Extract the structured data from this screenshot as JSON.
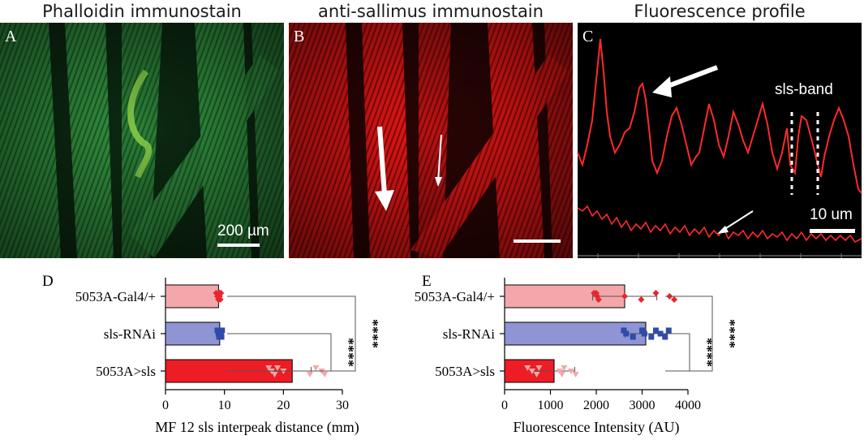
{
  "panels": {
    "a": {
      "letter": "A",
      "title": "Phalloidin immunostain",
      "scale_label": "200 µm"
    },
    "b": {
      "letter": "B",
      "title": "anti-sallimus immunostain"
    },
    "c": {
      "letter": "C",
      "title": "Fluorescence profile",
      "band_label": "sls-band",
      "scale_label": "10 um"
    }
  },
  "colors": {
    "green": "#3aa64a",
    "red": "#ff1a1a",
    "pink": "#f4a7aa",
    "lavender": "#8f94d4",
    "blue": "#2f4aa8",
    "bar_red": "#ee1c25"
  },
  "chart_data": [
    {
      "type": "bar",
      "orientation": "horizontal",
      "panel_label": "D",
      "categories": [
        "5053A-Gal4/+",
        "sls-RNAi",
        "5053A>sls"
      ],
      "values": [
        9,
        9.2,
        21.5
      ],
      "errors": [
        0.3,
        0.3,
        3.2
      ],
      "xlabel": "MF 12 sls interpeak distance (mm)",
      "xlim": [
        0,
        30
      ],
      "xticks": [
        "0",
        "10",
        "20",
        "30"
      ],
      "xtick_values": [
        0,
        10,
        20,
        30
      ],
      "points": [
        [
          8.6,
          8.8,
          9.0,
          9.1,
          9.2,
          9.3,
          9.4,
          8.9,
          9.0,
          9.2
        ],
        [
          8.8,
          9.0,
          9.1,
          9.3,
          9.4,
          9.5,
          9.2,
          9.0,
          9.3,
          9.6
        ],
        [
          17.5,
          18.0,
          18.5,
          19.0,
          20.0,
          24.5,
          25.5,
          26.5,
          27.0
        ]
      ],
      "bar_colors": [
        "#f4a7aa",
        "#8f94d4",
        "#ee1c25"
      ],
      "point_colors": [
        "#e8262d",
        "#2f4aa8",
        "#f4a7aa"
      ],
      "significance": [
        "****",
        "****"
      ]
    },
    {
      "type": "bar",
      "orientation": "horizontal",
      "panel_label": "E",
      "categories": [
        "5053A-Gal4/+",
        "sls-RNAi",
        "5053A>sls"
      ],
      "values": [
        2620,
        3080,
        1080
      ],
      "errors": [
        700,
        450,
        450
      ],
      "xlabel": "Fluorescence Intensity (AU)",
      "xlim": [
        0,
        4000
      ],
      "xticks": [
        "0",
        "1000",
        "2000",
        "3000",
        "4000"
      ],
      "xtick_values": [
        0,
        1000,
        2000,
        3000,
        4000
      ],
      "points": [
        [
          1950,
          2020,
          2050,
          2000,
          2620,
          2980,
          3300,
          3600,
          3700
        ],
        [
          2600,
          2650,
          2800,
          3000,
          3050,
          3200,
          3300,
          3400,
          3500,
          3580
        ],
        [
          500,
          600,
          700,
          750,
          1200,
          1250,
          1300,
          1450,
          1550
        ]
      ],
      "bar_colors": [
        "#f4a7aa",
        "#8f94d4",
        "#ee1c25"
      ],
      "point_colors": [
        "#e8262d",
        "#2f4aa8",
        "#f4a7aa"
      ],
      "significance": [
        "****",
        "****"
      ]
    }
  ]
}
